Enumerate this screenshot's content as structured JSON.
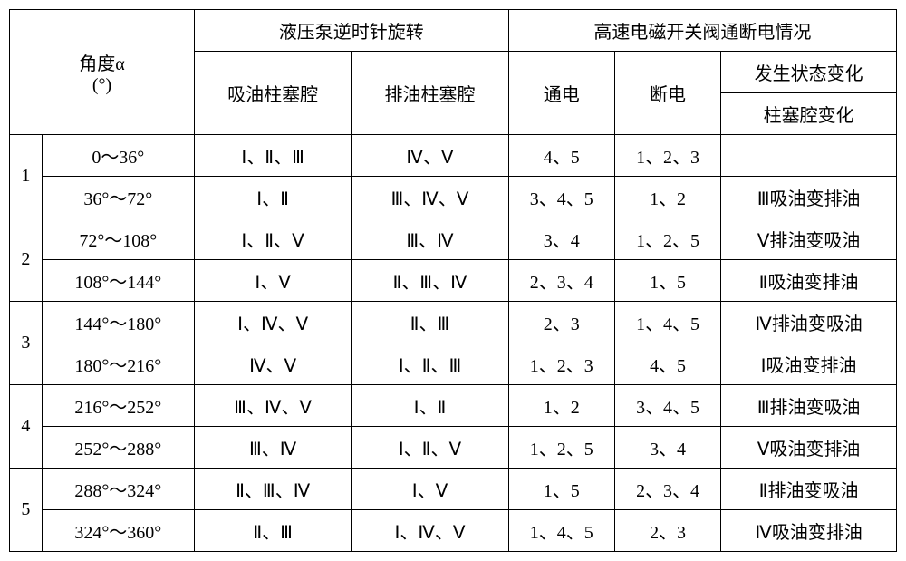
{
  "header": {
    "angle_label": "角度α",
    "angle_unit": "(°)",
    "pump_title": "液压泵逆时针旋转",
    "valve_title": "高速电磁开关阀通断电情况",
    "suction": "吸油柱塞腔",
    "discharge": "排油柱塞腔",
    "on": "通电",
    "off": "断电",
    "state_change": "发生状态变化",
    "cavity_change": "柱塞腔变化"
  },
  "rows": [
    {
      "idx": "1",
      "sub": [
        {
          "range": "0～36°",
          "suction": "Ⅰ、Ⅱ、Ⅲ",
          "discharge": "Ⅳ、Ⅴ",
          "on": "4、5",
          "off": "1、2、3",
          "change": ""
        },
        {
          "range": "36°～72°",
          "suction": "Ⅰ、Ⅱ",
          "discharge": "Ⅲ、Ⅳ、Ⅴ",
          "on": "3、4、5",
          "off": "1、2",
          "change": "Ⅲ吸油变排油"
        }
      ]
    },
    {
      "idx": "2",
      "sub": [
        {
          "range": "72°～108°",
          "suction": "Ⅰ、Ⅱ、Ⅴ",
          "discharge": "Ⅲ、Ⅳ",
          "on": "3、4",
          "off": "1、2、5",
          "change": "Ⅴ排油变吸油"
        },
        {
          "range": "108°～144°",
          "suction": "Ⅰ、Ⅴ",
          "discharge": "Ⅱ、Ⅲ、Ⅳ",
          "on": "2、3、4",
          "off": "1、5",
          "change": "Ⅱ吸油变排油"
        }
      ]
    },
    {
      "idx": "3",
      "sub": [
        {
          "range": "144°～180°",
          "suction": "Ⅰ、Ⅳ、Ⅴ",
          "discharge": "Ⅱ、Ⅲ",
          "on": "2、3",
          "off": "1、4、5",
          "change": "Ⅳ排油变吸油"
        },
        {
          "range": "180°～216°",
          "suction": "Ⅳ、Ⅴ",
          "discharge": "Ⅰ、Ⅱ、Ⅲ",
          "on": "1、2、3",
          "off": "4、5",
          "change": "Ⅰ吸油变排油"
        }
      ]
    },
    {
      "idx": "4",
      "sub": [
        {
          "range": "216°～252°",
          "suction": "Ⅲ、Ⅳ、Ⅴ",
          "discharge": "Ⅰ、Ⅱ",
          "on": "1、2",
          "off": "3、4、5",
          "change": "Ⅲ排油变吸油"
        },
        {
          "range": "252°～288°",
          "suction": "Ⅲ、Ⅳ",
          "discharge": "Ⅰ、Ⅱ、Ⅴ",
          "on": "1、2、5",
          "off": "3、4",
          "change": "Ⅴ吸油变排油"
        }
      ]
    },
    {
      "idx": "5",
      "sub": [
        {
          "range": "288°～324°",
          "suction": "Ⅱ、Ⅲ、Ⅳ",
          "discharge": "Ⅰ、Ⅴ",
          "on": "1、5",
          "off": "2、3、4",
          "change": "Ⅱ排油变吸油"
        },
        {
          "range": "324°～360°",
          "suction": "Ⅱ、Ⅲ",
          "discharge": "Ⅰ、Ⅳ、Ⅴ",
          "on": "1、4、5",
          "off": "2、3",
          "change": "Ⅳ吸油变排油"
        }
      ]
    }
  ]
}
